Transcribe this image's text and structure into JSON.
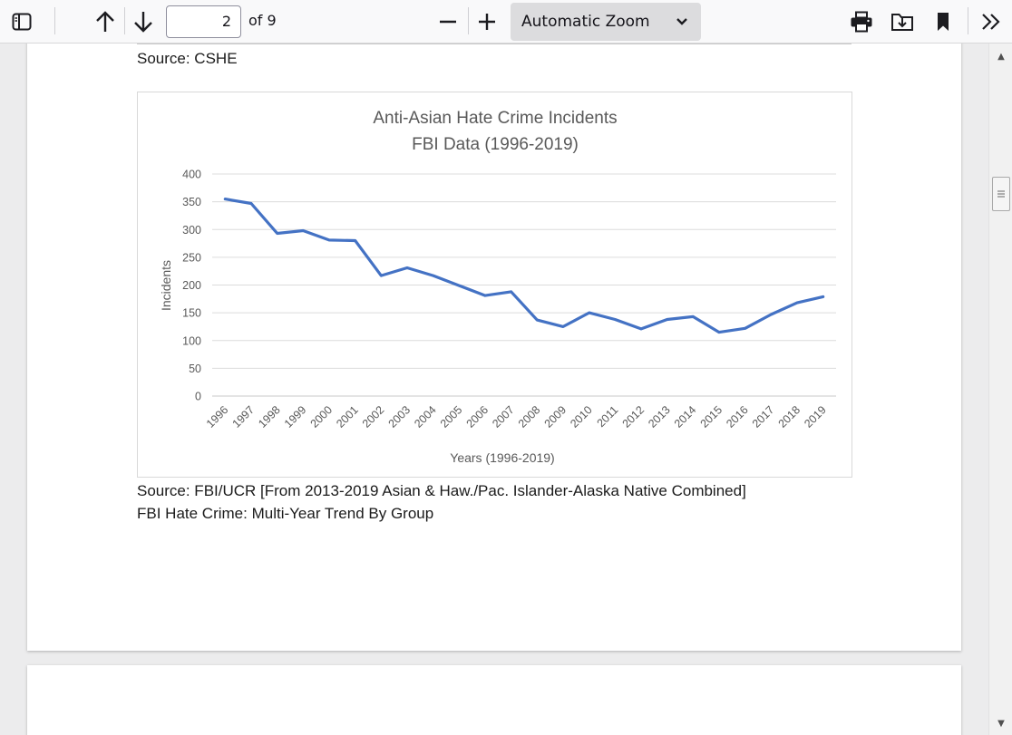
{
  "toolbar": {
    "page_number": "2",
    "page_count_label": "of 9",
    "zoom_label": "Automatic Zoom",
    "icons": [
      "sidebar-toggle-icon",
      "previous-page-icon",
      "next-page-icon",
      "zoom-out-icon",
      "zoom-in-icon",
      "chevron-down-icon",
      "print-icon",
      "save-icon",
      "bookmark-icon",
      "tools-menu-icon"
    ]
  },
  "document": {
    "source_top": "Source: CSHE",
    "source_bottom_1": "Source: FBI/UCR [From 2013-2019 Asian & Haw./Pac. Islander-Alaska Native Combined]",
    "source_bottom_2": "FBI Hate Crime: Multi-Year Trend By Group"
  },
  "chart_data": {
    "type": "line",
    "title_line1": "Anti-Asian Hate Crime Incidents",
    "title_line2": "FBI Data (1996-2019)",
    "xlabel": "Years (1996-2019)",
    "ylabel": "Incidents",
    "ylim": [
      0,
      400
    ],
    "yticks": [
      0,
      50,
      100,
      150,
      200,
      250,
      300,
      350,
      400
    ],
    "grid": true,
    "color": "#4472c4",
    "categories": [
      "1996",
      "1997",
      "1998",
      "1999",
      "2000",
      "2001",
      "2002",
      "2003",
      "2004",
      "2005",
      "2006",
      "2007",
      "2008",
      "2009",
      "2010",
      "2011",
      "2012",
      "2013",
      "2014",
      "2015",
      "2016",
      "2017",
      "2018",
      "2019"
    ],
    "values": [
      355,
      347,
      293,
      298,
      281,
      280,
      217,
      231,
      217,
      199,
      181,
      188,
      137,
      125,
      150,
      138,
      121,
      138,
      143,
      115,
      122,
      147,
      168,
      179
    ]
  }
}
